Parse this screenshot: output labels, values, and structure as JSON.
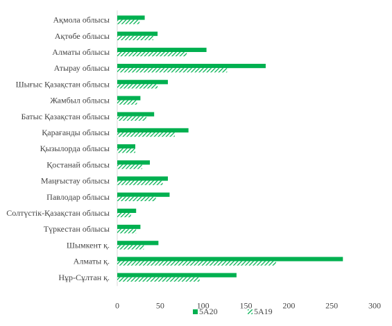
{
  "chart_data": {
    "type": "bar",
    "orientation": "horizontal",
    "categories": [
      "Ақмола облысы",
      "Ақтөбе облысы",
      "Алматы облысы",
      "Атырау облысы",
      "Шығыс Қазақстан  облысы",
      "Жамбыл облысы",
      "Батыс Қазақстан облысы",
      "Қарағанды облысы",
      "Қызылорда облысы",
      "Қостанай  облысы",
      "Маңғыстау облысы",
      "Павлодар облысы",
      "Солтүстік-Қазақстан  облысы",
      "Түркестан облысы",
      "Шымкент  қ.",
      "Алматы қ.",
      "Нұр-Сұлтан қ."
    ],
    "series": [
      {
        "name": "5А20",
        "color": "#00b050",
        "pattern": "solid",
        "values": [
          32,
          47,
          104,
          173,
          59,
          27,
          43,
          83,
          21,
          38,
          59,
          61,
          22,
          27,
          48,
          263,
          139
        ]
      },
      {
        "name": "5А19",
        "color": "#00b050",
        "pattern": "hatched",
        "values": [
          26,
          42,
          81,
          128,
          47,
          23,
          34,
          67,
          21,
          29,
          53,
          45,
          16,
          22,
          31,
          185,
          96
        ]
      }
    ],
    "xlim": [
      0,
      300
    ],
    "xticks": [
      0,
      50,
      100,
      150,
      200,
      250,
      300
    ],
    "grid": false,
    "legend_position": "bottom",
    "title": "",
    "xlabel": "",
    "ylabel": ""
  }
}
